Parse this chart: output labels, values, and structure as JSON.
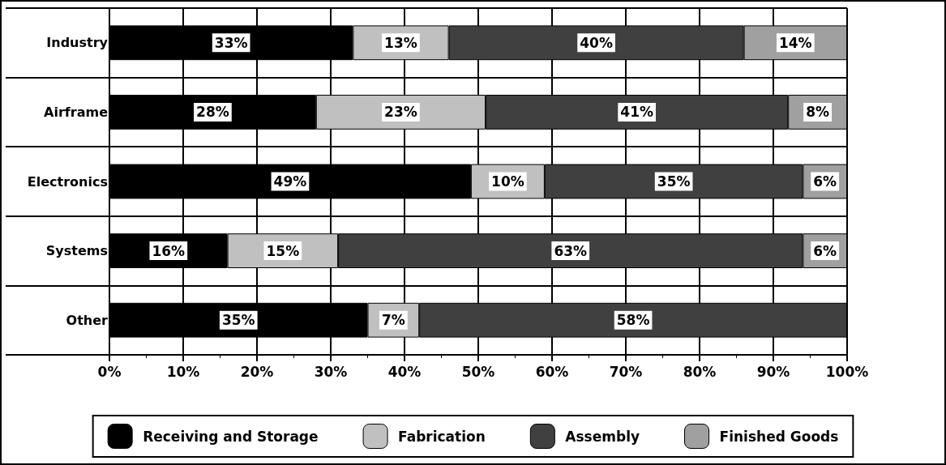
{
  "chart_data": {
    "type": "bar",
    "orientation": "horizontal",
    "stacked": true,
    "categories": [
      "Industry",
      "Airframe",
      "Electronics",
      "Systems",
      "Other"
    ],
    "series": [
      {
        "name": "Receiving and Storage",
        "color": "#000000",
        "values": [
          33,
          28,
          49,
          16,
          35
        ],
        "value_labels": [
          "33%",
          "28%",
          "49%",
          "16%",
          "35%"
        ]
      },
      {
        "name": "Fabrication",
        "color": "#c0c0c0",
        "values": [
          13,
          23,
          10,
          15,
          7
        ],
        "value_labels": [
          "13%",
          "23%",
          "10%",
          "15%",
          "7%"
        ]
      },
      {
        "name": "Assembly",
        "color": "#404040",
        "values": [
          40,
          41,
          35,
          63,
          58
        ],
        "value_labels": [
          "40%",
          "41%",
          "35%",
          "63%",
          "58%"
        ]
      },
      {
        "name": "Finished Goods",
        "color": "#a0a0a0",
        "values": [
          14,
          8,
          6,
          6,
          null
        ],
        "value_labels": [
          "14%",
          "8%",
          "6%",
          "6%",
          null
        ]
      }
    ],
    "xlim": [
      0,
      100
    ],
    "xticks": [
      {
        "value": 0,
        "label": "0%"
      },
      {
        "value": 10,
        "label": "10%"
      },
      {
        "value": 20,
        "label": "20%"
      },
      {
        "value": 30,
        "label": "30%"
      },
      {
        "value": 40,
        "label": "40%"
      },
      {
        "value": 50,
        "label": "50%"
      },
      {
        "value": 60,
        "label": "60%"
      },
      {
        "value": 70,
        "label": "70%"
      },
      {
        "value": 80,
        "label": "80%"
      },
      {
        "value": 90,
        "label": "90%"
      },
      {
        "value": 100,
        "label": "100%"
      }
    ],
    "grid": true,
    "legend": "bottom"
  }
}
